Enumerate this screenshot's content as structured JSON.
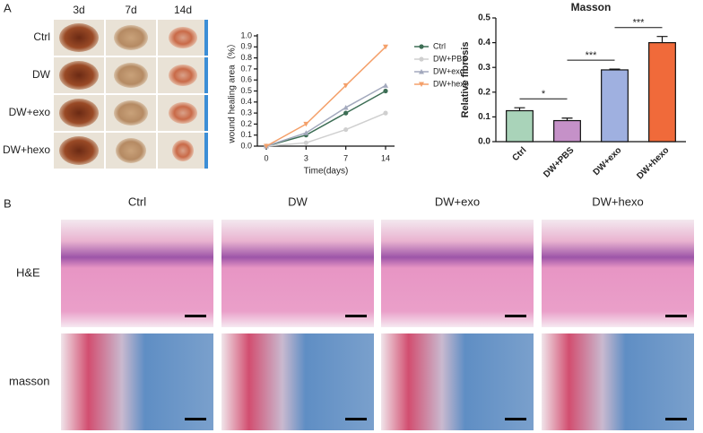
{
  "panel_labels": [
    "A",
    "B"
  ],
  "photo_columns": [
    "3d",
    "7d",
    "14d"
  ],
  "photo_rows": [
    "Ctrl",
    "DW",
    "DW+exo",
    "DW+hexo"
  ],
  "histology_columns": [
    "Ctrl",
    "DW",
    "DW+exo",
    "DW+hexo"
  ],
  "histology_rows": [
    "H&E",
    "masson"
  ],
  "chart_data": [
    {
      "type": "line",
      "ylabel": "wound healing area（%）",
      "xlabel": "Time(days)",
      "categories": [
        "0",
        "3",
        "7",
        "14"
      ],
      "ylim": [
        0,
        1
      ],
      "yticks": [
        {
          "value": 0,
          "label": "0.0"
        },
        0.1,
        0.2,
        0.3,
        0.4,
        0.5,
        0.6,
        0.7,
        0.8,
        0.9,
        {
          "value": 1,
          "label": "1.0"
        }
      ],
      "legend": "upper right",
      "series": [
        {
          "name": "Ctrl",
          "color": "#3d6e55",
          "marker": "circle",
          "values": [
            0,
            0.1,
            0.3,
            0.5
          ]
        },
        {
          "name": "DW+PBS",
          "color": "#cfcfcf",
          "marker": "circle",
          "values": [
            0,
            0.03,
            0.15,
            0.3
          ]
        },
        {
          "name": "DW+exo",
          "color": "#a3a9bd",
          "marker": "triangle",
          "values": [
            0,
            0.12,
            0.35,
            0.55
          ]
        },
        {
          "name": "DW+hexo",
          "color": "#f4a06a",
          "marker": "triangle-down",
          "values": [
            0,
            0.2,
            0.55,
            0.9
          ]
        }
      ]
    },
    {
      "type": "bar",
      "title": "Masson",
      "ylabel": "Relative fibrosis",
      "categories": [
        "Ctrl",
        "DW+PBS",
        "DW+exo",
        "DW+hexo"
      ],
      "values": [
        0.125,
        0.085,
        0.29,
        0.4
      ],
      "errors": [
        0.012,
        0.01,
        0.003,
        0.025
      ],
      "colors": [
        "#a9d3b9",
        "#c591c8",
        "#9fb0e0",
        "#f06a3a"
      ],
      "ylim": [
        0,
        0.5
      ],
      "yticks": [
        {
          "value": 0,
          "label": "0.0"
        },
        0.1,
        0.2,
        0.3,
        0.4,
        0.5
      ],
      "significance": [
        {
          "label": "*",
          "from": 0,
          "to": 1
        },
        {
          "label": "***",
          "from": 1,
          "to": 2
        },
        {
          "label": "***",
          "from": 2,
          "to": 3
        }
      ]
    }
  ]
}
